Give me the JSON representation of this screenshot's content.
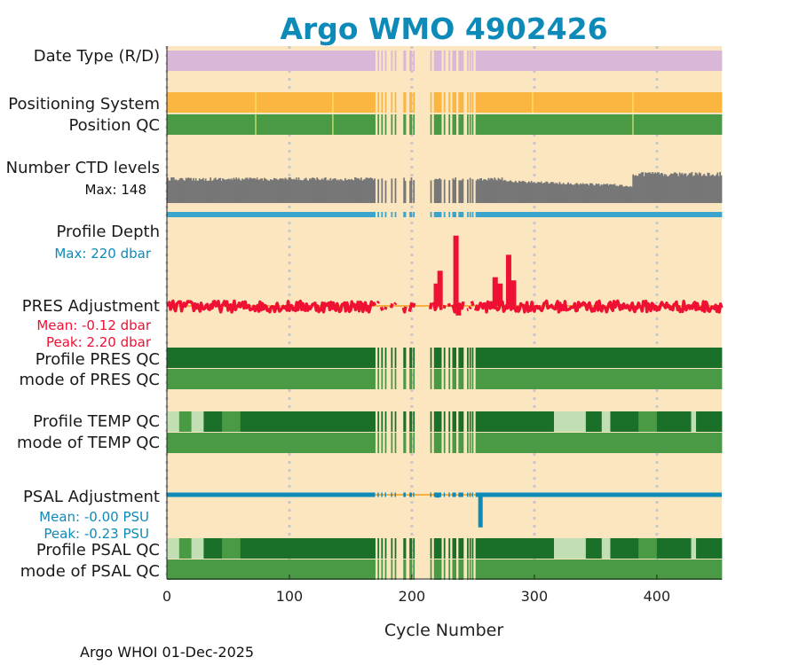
{
  "chart_data": {
    "type": "timeline-status",
    "title": "Argo WMO 4902426",
    "xlabel": "Cycle Number",
    "xlim": [
      0,
      453
    ],
    "xticks": [
      0,
      100,
      200,
      300,
      400
    ],
    "footer": "Argo WHOI 01-Dec-2025",
    "colors": {
      "title": "#0e8ab8",
      "background": "#fbe6bf",
      "delayed_mode": "#d9b7d8",
      "positioning": "#fbb541",
      "qc_good": "#4a9a45",
      "qc_dark": "#1a7028",
      "qc_light": "#c2dfb4",
      "ctd_levels": "#777777",
      "depth": "#3aa4cc",
      "pres": "#ee1133",
      "psal": "#0e8ab8",
      "ref_line": "#f5b041",
      "grid": "#c8c8cc"
    },
    "rows": [
      {
        "labels": [
          "Date Type (R/D)"
        ]
      },
      {
        "labels": [
          "Positioning System",
          "Position QC"
        ]
      },
      {
        "labels": [
          "Number CTD levels"
        ],
        "note": "Max: 148"
      },
      {
        "labels": [
          "Profile Depth"
        ],
        "note": "Max:  220 dbar"
      },
      {
        "labels": [
          "PRES Adjustment"
        ],
        "notes": [
          "Mean: -0.12 dbar",
          "Peak: 2.20 dbar"
        ]
      },
      {
        "labels": [
          "Profile PRES QC",
          "mode of PRES QC"
        ]
      },
      {
        "labels": [
          "Profile TEMP QC",
          "mode of TEMP QC"
        ]
      },
      {
        "labels": [
          "PSAL Adjustment"
        ],
        "notes": [
          "Mean: -0.00 PSU",
          "Peak: -0.23 PSU"
        ]
      },
      {
        "labels": [
          "Profile PSAL QC",
          "mode of PSAL QC"
        ]
      }
    ],
    "stats": {
      "ctd_levels_max": 148,
      "profile_depth_max_dbar": 220,
      "pres_adjustment_mean_dbar": -0.12,
      "pres_adjustment_peak_dbar": 2.2,
      "psal_adjustment_mean_psu": -0.0,
      "psal_adjustment_peak_psu": -0.23
    },
    "data_gaps_cycles": [
      [
        170,
        172
      ],
      [
        173,
        175
      ],
      [
        176,
        178
      ],
      [
        179,
        183
      ],
      [
        184,
        186
      ],
      [
        187,
        193
      ],
      [
        195,
        198
      ],
      [
        200,
        201
      ],
      [
        202,
        215
      ],
      [
        216,
        218
      ],
      [
        224,
        226
      ],
      [
        227,
        230
      ],
      [
        231,
        233
      ],
      [
        236,
        238
      ],
      [
        242,
        245
      ],
      [
        246,
        247
      ],
      [
        248,
        249
      ],
      [
        250,
        252
      ]
    ],
    "pres_spikes": [
      {
        "cycle": 220,
        "value": 0.7
      },
      {
        "cycle": 223,
        "value": 1.1
      },
      {
        "cycle": 236,
        "value": 2.2
      },
      {
        "cycle": 238,
        "value": -0.3
      },
      {
        "cycle": 268,
        "value": 0.9
      },
      {
        "cycle": 272,
        "value": 0.7
      },
      {
        "cycle": 279,
        "value": 1.6
      },
      {
        "cycle": 283,
        "value": 0.8
      }
    ],
    "psal_offsets": [
      {
        "cycle": 221,
        "value": -0.02
      },
      {
        "cycle": 256,
        "value": -0.23
      }
    ]
  }
}
